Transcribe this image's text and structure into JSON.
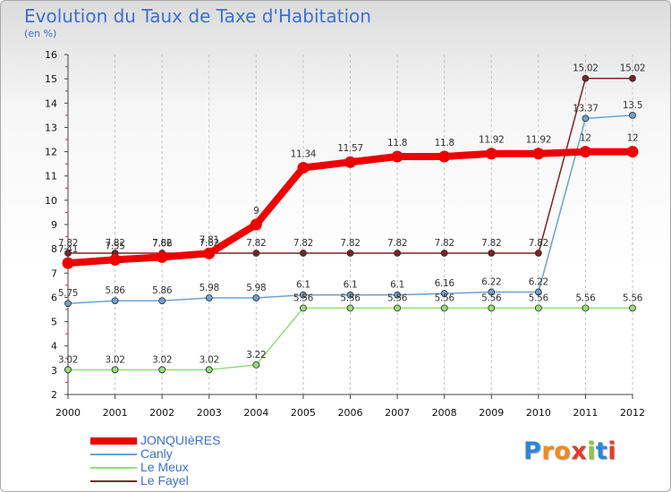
{
  "title": "Evolution du Taux de Taxe d'Habitation",
  "subtitle": "(en %)",
  "brand": {
    "text": "Proxiti",
    "letter_colors": [
      "#2e86d6",
      "#f28a1c",
      "#f28a1c",
      "#e43d2a",
      "#8cc63f",
      "#2e86d6",
      "#e43d2a"
    ]
  },
  "chart_data": {
    "type": "line",
    "x": [
      2000,
      2001,
      2002,
      2003,
      2004,
      2005,
      2006,
      2007,
      2008,
      2009,
      2010,
      2011,
      2012
    ],
    "ylim": [
      2,
      16
    ],
    "yticks": [
      2,
      3,
      4,
      5,
      6,
      7,
      8,
      9,
      10,
      11,
      12,
      13,
      14,
      15,
      16
    ],
    "grid": "vertical dashed",
    "legend_position": "bottom-left",
    "series": [
      {
        "name": "Le Fayel",
        "color": "#7a2424",
        "values": [
          7.82,
          7.82,
          7.82,
          7.82,
          7.82,
          7.82,
          7.82,
          7.82,
          7.82,
          7.82,
          7.82,
          15.02,
          15.02
        ],
        "labels": [
          "7.82",
          "7.82",
          "7.82",
          "7.82",
          "7.82",
          "7.82",
          "7.82",
          "7.82",
          "7.82",
          "7.82",
          "7.82",
          "15.02",
          "15.02"
        ]
      },
      {
        "name": "Le Meux",
        "color": "#96dc7a",
        "values": [
          3.02,
          3.02,
          3.02,
          3.02,
          3.22,
          5.56,
          5.56,
          5.56,
          5.56,
          5.56,
          5.56,
          5.56,
          5.56
        ],
        "labels": [
          "3.02",
          "3.02",
          "3.02",
          "3.02",
          "3.22",
          "5.56",
          "5.56",
          "5.56",
          "5.56",
          "5.56",
          "5.56",
          "5.56",
          "5.56"
        ]
      },
      {
        "name": "Canly",
        "color": "#6fa0cf",
        "values": [
          5.75,
          5.86,
          5.86,
          5.98,
          5.98,
          6.1,
          6.1,
          6.1,
          6.16,
          6.22,
          6.22,
          13.37,
          13.5
        ],
        "labels": [
          "5.75",
          "5.86",
          "5.86",
          "5.98",
          "5.98",
          "6.1",
          "6.1",
          "6.1",
          "6.16",
          "6.22",
          "6.22",
          "13.37",
          "13.5"
        ]
      },
      {
        "name": "JONQUIèRES",
        "color": "#ee0000",
        "values": [
          7.41,
          7.55,
          7.66,
          7.81,
          9,
          11.34,
          11.57,
          11.8,
          11.8,
          11.92,
          11.92,
          12,
          12
        ],
        "labels": [
          "7.41",
          "7.55",
          "7.66",
          "7.81",
          "9",
          "11.34",
          "11.57",
          "11.8",
          "11.8",
          "11.92",
          "11.92",
          "12",
          "12"
        ]
      }
    ]
  },
  "legend": [
    {
      "label": "JONQUIèRES",
      "color": "#ee0000",
      "thickness": 8
    },
    {
      "label": "Canly",
      "color": "#6fa0cf",
      "thickness": 2
    },
    {
      "label": "Le Meux",
      "color": "#96dc7a",
      "thickness": 2
    },
    {
      "label": "Le Fayel",
      "color": "#7a2424",
      "thickness": 2
    }
  ]
}
